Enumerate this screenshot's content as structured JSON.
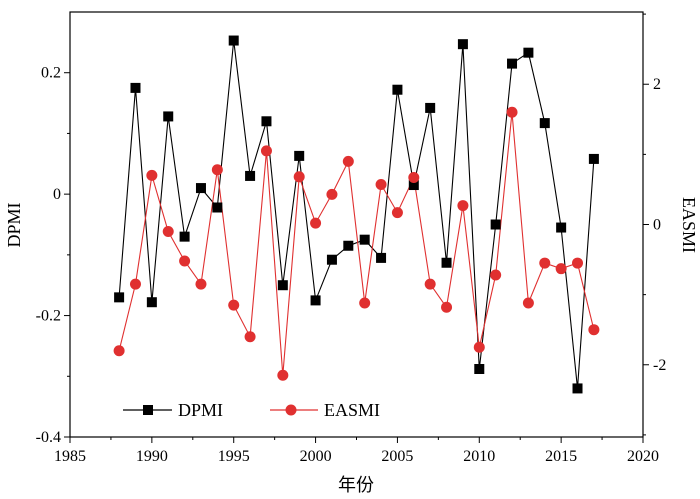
{
  "chart_data": {
    "type": "line",
    "xlabel": "年份",
    "ylabel": "DPMI",
    "y2label": "EASMI",
    "xlim": [
      1985,
      2020
    ],
    "ylim": [
      -0.4,
      0.3
    ],
    "y2lim": [
      -3.03,
      3.03
    ],
    "xticks": [
      1985,
      1990,
      1995,
      2000,
      2005,
      2010,
      2015,
      2020
    ],
    "yticks": [
      -0.4,
      -0.2,
      0,
      0.2
    ],
    "y2ticks": [
      -2,
      0,
      2
    ],
    "legend_position": "bottom-left",
    "grid": false,
    "x": [
      1988,
      1989,
      1990,
      1991,
      1992,
      1993,
      1994,
      1995,
      1996,
      1997,
      1998,
      1999,
      2000,
      2001,
      2002,
      2003,
      2004,
      2005,
      2006,
      2007,
      2008,
      2009,
      2010,
      2011,
      2012,
      2013,
      2014,
      2015,
      2016,
      2017
    ],
    "series": [
      {
        "name": "DPMI",
        "axis": "left",
        "color": "#000000",
        "marker": "square",
        "values": [
          -0.17,
          0.175,
          -0.178,
          0.128,
          -0.07,
          0.01,
          -0.022,
          0.253,
          0.03,
          0.12,
          -0.15,
          0.063,
          -0.175,
          -0.108,
          -0.085,
          -0.075,
          -0.105,
          0.172,
          0.015,
          0.142,
          -0.113,
          0.247,
          -0.288,
          -0.05,
          0.215,
          0.233,
          0.117,
          -0.055,
          -0.32,
          0.058
        ]
      },
      {
        "name": "EASMI",
        "axis": "right",
        "color": "#e03030",
        "marker": "circle",
        "values": [
          -1.8,
          -0.85,
          0.7,
          -0.1,
          -0.52,
          -0.85,
          0.78,
          -1.15,
          -1.6,
          1.05,
          -2.15,
          0.68,
          0.02,
          0.43,
          0.9,
          -1.12,
          0.57,
          0.17,
          0.67,
          -0.85,
          -1.18,
          0.27,
          -1.75,
          -0.72,
          1.6,
          -1.12,
          -0.55,
          -0.63,
          -0.55,
          -1.5
        ]
      }
    ]
  }
}
